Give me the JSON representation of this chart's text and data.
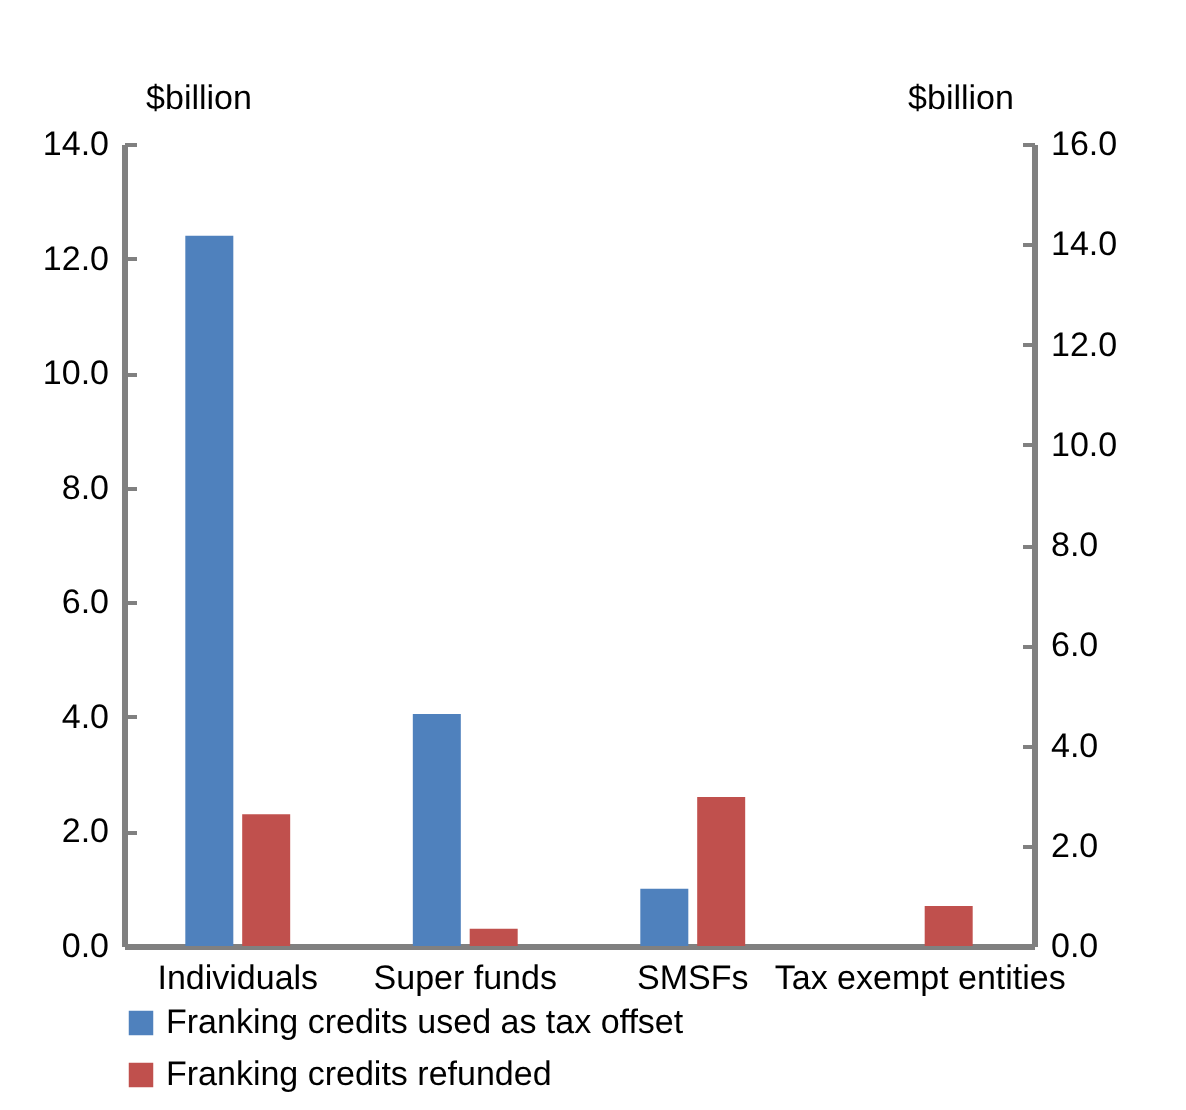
{
  "chart_data": {
    "type": "bar",
    "ylabel": "$billion",
    "y2label": "$billion",
    "categories": [
      "Individuals",
      "Super\nfunds",
      "SMSFs",
      "Tax exempt\nentities"
    ],
    "series": [
      {
        "name": "Franking credits used as tax offset",
        "color": "#4f81bd",
        "values": [
          12.4,
          4.05,
          1.0,
          null
        ]
      },
      {
        "name": "Franking credits refunded",
        "color": "#c0504d",
        "values": [
          2.3,
          0.3,
          2.6,
          0.7
        ]
      }
    ],
    "ylim": [
      0,
      14
    ],
    "yticks": [
      {
        "value": 0,
        "label": "0.0"
      },
      {
        "value": 2,
        "label": "2.0"
      },
      {
        "value": 4,
        "label": "4.0"
      },
      {
        "value": 6,
        "label": "6.0"
      },
      {
        "value": 8,
        "label": "8.0"
      },
      {
        "value": 10,
        "label": "10.0"
      },
      {
        "value": 12,
        "label": "12.0"
      },
      {
        "value": 14,
        "label": "14.0"
      }
    ],
    "y2lim": [
      0,
      16
    ],
    "y2ticks": [
      {
        "value": 0,
        "label": "0.0"
      },
      {
        "value": 2,
        "label": "2.0"
      },
      {
        "value": 4,
        "label": "4.0"
      },
      {
        "value": 6,
        "label": "6.0"
      },
      {
        "value": 8,
        "label": "8.0"
      },
      {
        "value": 10,
        "label": "10.0"
      },
      {
        "value": 12,
        "label": "12.0"
      },
      {
        "value": 14,
        "label": "14.0"
      },
      {
        "value": 16,
        "label": "16.0"
      }
    ],
    "legend": "bottom"
  }
}
